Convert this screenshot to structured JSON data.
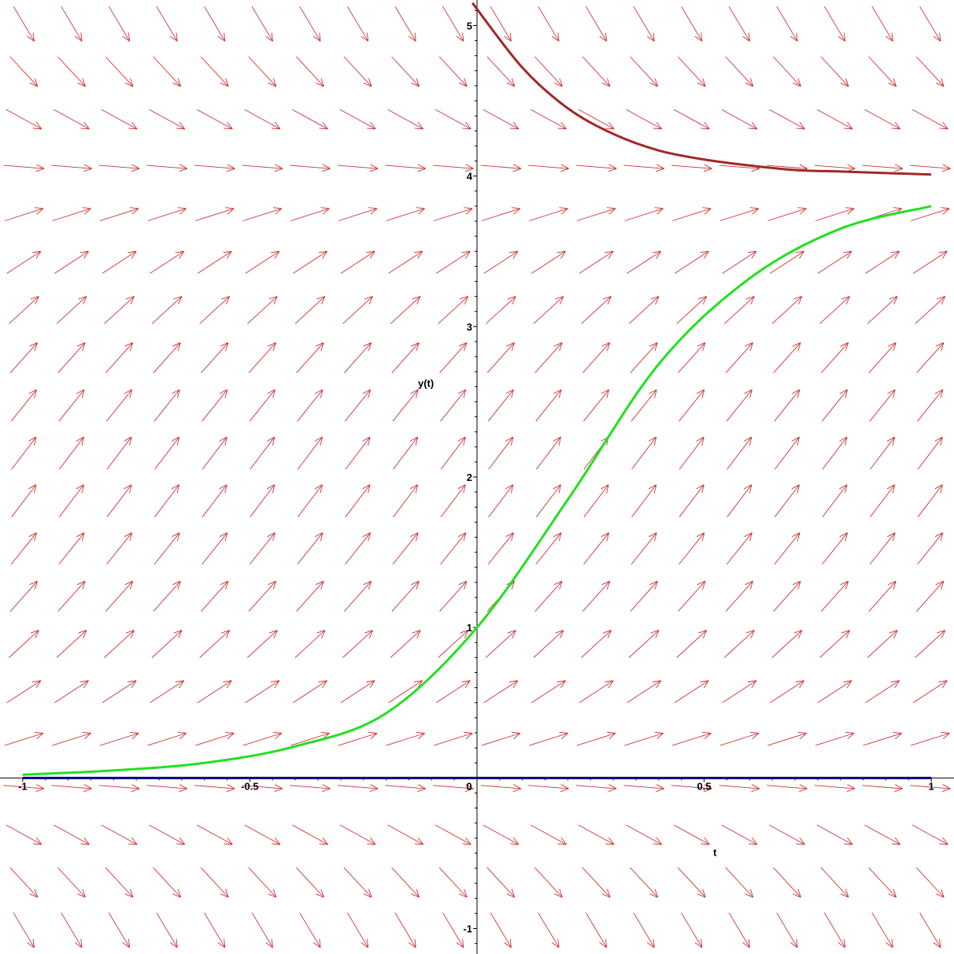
{
  "chart_data": {
    "type": "line",
    "title": "",
    "xlabel": "t",
    "ylabel": "y(t)",
    "xlim": [
      -1.05,
      1.05
    ],
    "ylim": [
      -1.17,
      5.17
    ],
    "x_ticks": [
      {
        "value": -1,
        "label": "-1"
      },
      {
        "value": -0.5,
        "label": "-0.5"
      },
      {
        "value": 0,
        "label": "0"
      },
      {
        "value": 0.5,
        "label": "0.5"
      },
      {
        "value": 1,
        "label": "1"
      }
    ],
    "y_ticks": [
      {
        "value": -1,
        "label": "-1"
      },
      {
        "value": 1,
        "label": "1"
      },
      {
        "value": 2,
        "label": "2"
      },
      {
        "value": 3,
        "label": "3"
      },
      {
        "value": 4,
        "label": "4"
      },
      {
        "value": 5,
        "label": "5"
      }
    ],
    "grid": false,
    "direction_field": {
      "equation": "y' = 4y - y^2",
      "color": "#d03030",
      "t_count": 20,
      "y_count": 20
    },
    "series": [
      {
        "color": "#22e022",
        "x": [
          -1,
          -0.8,
          -0.6,
          -0.4,
          -0.2,
          0,
          0.2,
          0.4,
          0.6,
          0.8,
          1
        ],
        "y": [
          0.022,
          0.05,
          0.1,
          0.21,
          0.43,
          1.0,
          1.85,
          2.75,
          3.32,
          3.65,
          3.8
        ]
      },
      {
        "color": "#a02828",
        "x": [
          -0.01,
          0.1,
          0.2,
          0.3,
          0.4,
          0.5,
          0.6,
          0.7,
          0.8,
          0.9,
          1
        ],
        "y": [
          5.15,
          4.72,
          4.45,
          4.28,
          4.17,
          4.11,
          4.07,
          4.04,
          4.03,
          4.02,
          4.01
        ]
      },
      {
        "color": "#00008b",
        "x": [
          -1,
          1
        ],
        "y": [
          0,
          0
        ]
      }
    ]
  }
}
